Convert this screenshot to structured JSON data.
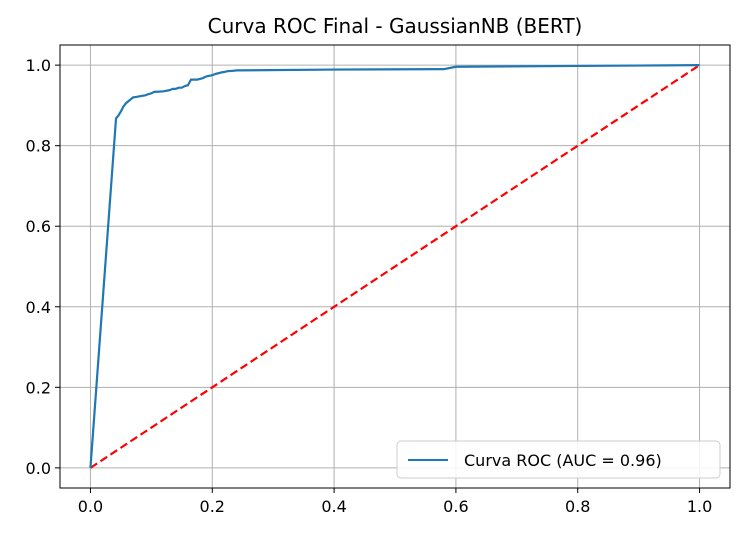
{
  "chart_data": {
    "type": "line",
    "title": "Curva ROC Final - GaussianNB (BERT)",
    "xlabel": "",
    "ylabel": "",
    "xlim": [
      -0.05,
      1.05
    ],
    "ylim": [
      -0.05,
      1.05
    ],
    "x_ticks": [
      0.0,
      0.2,
      0.4,
      0.6,
      0.8,
      1.0
    ],
    "x_tick_labels": [
      "0.0",
      "0.2",
      "0.4",
      "0.6",
      "0.8",
      "1.0"
    ],
    "y_ticks": [
      0.0,
      0.2,
      0.4,
      0.6,
      0.8,
      1.0
    ],
    "y_tick_labels": [
      "0.0",
      "0.2",
      "0.4",
      "0.6",
      "0.8",
      "1.0"
    ],
    "grid": true,
    "legend_position": "lower-right",
    "series": [
      {
        "name": "Curva ROC (AUC = 0.96)",
        "color": "#1f77b4",
        "style": "solid",
        "x": [
          0.0,
          0.042,
          0.046,
          0.05,
          0.054,
          0.058,
          0.062,
          0.066,
          0.07,
          0.075,
          0.09,
          0.095,
          0.1,
          0.105,
          0.11,
          0.12,
          0.13,
          0.135,
          0.14,
          0.145,
          0.15,
          0.155,
          0.16,
          0.165,
          0.175,
          0.185,
          0.19,
          0.2,
          0.205,
          0.215,
          0.22,
          0.225,
          0.235,
          0.24,
          0.4,
          0.58,
          0.6,
          0.8,
          1.0
        ],
        "y": [
          0.0,
          0.868,
          0.875,
          0.885,
          0.897,
          0.905,
          0.91,
          0.915,
          0.92,
          0.921,
          0.925,
          0.928,
          0.93,
          0.934,
          0.934,
          0.935,
          0.938,
          0.941,
          0.941,
          0.944,
          0.944,
          0.948,
          0.95,
          0.964,
          0.964,
          0.968,
          0.972,
          0.975,
          0.978,
          0.982,
          0.983,
          0.985,
          0.986,
          0.987,
          0.989,
          0.99,
          0.996,
          0.998,
          1.0
        ]
      },
      {
        "name": "",
        "color": "#ff0000",
        "style": "dashed",
        "x": [
          0.0,
          1.0
        ],
        "y": [
          0.0,
          1.0
        ]
      }
    ]
  }
}
